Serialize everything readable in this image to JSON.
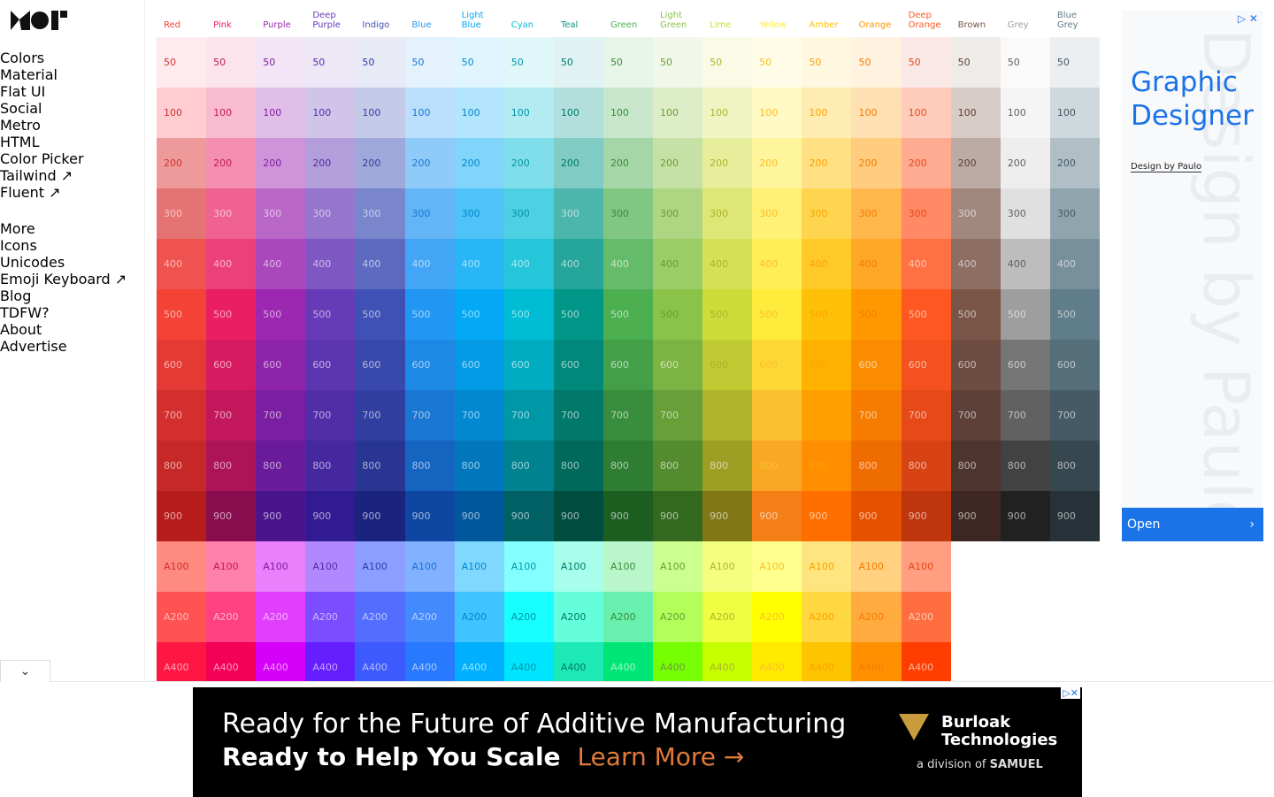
{
  "sidebar": {
    "sections": [
      {
        "title": "Colors",
        "items": [
          "Material",
          "Flat UI",
          "Social",
          "Metro",
          "HTML",
          "Color Picker",
          "Tailwind ↗",
          "Fluent ↗"
        ]
      },
      {
        "title": "More",
        "items": [
          "Icons",
          "Unicodes",
          "Emoji Keyboard ↗",
          "Blog",
          "TDFW?",
          "About",
          "Advertise"
        ]
      }
    ],
    "active": "Material"
  },
  "palette": {
    "shades": [
      "50",
      "100",
      "200",
      "300",
      "400",
      "500",
      "600",
      "700",
      "800",
      "900",
      "A100",
      "A200",
      "A400"
    ],
    "columns": [
      {
        "name": "Red",
        "colors": [
          "#ffebee",
          "#ffcdd2",
          "#ef9a9a",
          "#e57373",
          "#ef5350",
          "#f44336",
          "#e53935",
          "#d32f2f",
          "#c62828",
          "#b71c1c",
          "#ff8a80",
          "#ff5252",
          "#ff1744"
        ]
      },
      {
        "name": "Pink",
        "colors": [
          "#fce4ec",
          "#f8bbd0",
          "#f48fb1",
          "#f06292",
          "#ec407a",
          "#e91e63",
          "#d81b60",
          "#c2185b",
          "#ad1457",
          "#880e4f",
          "#ff80ab",
          "#ff4081",
          "#f50057"
        ]
      },
      {
        "name": "Purple",
        "colors": [
          "#f3e5f5",
          "#e1bee7",
          "#ce93d8",
          "#ba68c8",
          "#ab47bc",
          "#9c27b0",
          "#8e24aa",
          "#7b1fa2",
          "#6a1b9a",
          "#4a148c",
          "#ea80fc",
          "#e040fb",
          "#d500f9"
        ]
      },
      {
        "name": "Deep Purple",
        "colors": [
          "#ede7f6",
          "#d1c4e9",
          "#b39ddb",
          "#9575cd",
          "#7e57c2",
          "#673ab7",
          "#5e35b1",
          "#512da8",
          "#4527a0",
          "#311b92",
          "#b388ff",
          "#7c4dff",
          "#651fff"
        ]
      },
      {
        "name": "Indigo",
        "colors": [
          "#e8eaf6",
          "#c5cae9",
          "#9fa8da",
          "#7986cb",
          "#5c6bc0",
          "#3f51b5",
          "#3949ab",
          "#303f9f",
          "#283593",
          "#1a237e",
          "#8c9eff",
          "#536dfe",
          "#3d5afe"
        ]
      },
      {
        "name": "Blue",
        "colors": [
          "#e3f2fd",
          "#bbdefb",
          "#90caf9",
          "#64b5f6",
          "#42a5f5",
          "#2196f3",
          "#1e88e5",
          "#1976d2",
          "#1565c0",
          "#0d47a1",
          "#82b1ff",
          "#448aff",
          "#2979ff"
        ]
      },
      {
        "name": "Light Blue",
        "colors": [
          "#e1f5fe",
          "#b3e5fc",
          "#81d4fa",
          "#4fc3f7",
          "#29b6f6",
          "#03a9f4",
          "#039be5",
          "#0288d1",
          "#0277bd",
          "#01579b",
          "#80d8ff",
          "#40c4ff",
          "#00b0ff"
        ]
      },
      {
        "name": "Cyan",
        "colors": [
          "#e0f7fa",
          "#b2ebf2",
          "#80deea",
          "#4dd0e1",
          "#26c6da",
          "#00bcd4",
          "#00acc1",
          "#0097a7",
          "#00838f",
          "#006064",
          "#84ffff",
          "#18ffff",
          "#00e5ff"
        ]
      },
      {
        "name": "Teal",
        "colors": [
          "#e0f2f1",
          "#b2dfdb",
          "#80cbc4",
          "#4db6ac",
          "#26a69a",
          "#009688",
          "#00897b",
          "#00796b",
          "#00695c",
          "#004d40",
          "#a7ffeb",
          "#64ffda",
          "#1de9b6"
        ]
      },
      {
        "name": "Green",
        "colors": [
          "#e8f5e9",
          "#c8e6c9",
          "#a5d6a7",
          "#81c784",
          "#66bb6a",
          "#4caf50",
          "#43a047",
          "#388e3c",
          "#2e7d32",
          "#1b5e20",
          "#b9f6ca",
          "#69f0ae",
          "#00e676"
        ]
      },
      {
        "name": "Light Green",
        "colors": [
          "#f1f8e9",
          "#dcedc8",
          "#c5e1a5",
          "#aed581",
          "#9ccc65",
          "#8bc34a",
          "#7cb342",
          "#689f38",
          "#558b2f",
          "#33691e",
          "#ccff90",
          "#b2ff59",
          "#76ff03"
        ]
      },
      {
        "name": "Lime",
        "colors": [
          "#f9fbe7",
          "#f0f4c3",
          "#e6ee9c",
          "#dce775",
          "#d4e157",
          "#cddc39",
          "#c0ca33",
          "#afb42b",
          "#9e9d24",
          "#827717",
          "#f4ff81",
          "#eeff41",
          "#c6ff00"
        ]
      },
      {
        "name": "Yellow",
        "colors": [
          "#fffde7",
          "#fff9c4",
          "#fff59d",
          "#fff176",
          "#ffee58",
          "#ffeb3b",
          "#fdd835",
          "#fbc02d",
          "#f9a825",
          "#f57f17",
          "#ffff8d",
          "#ffff00",
          "#ffea00"
        ]
      },
      {
        "name": "Amber",
        "colors": [
          "#fff8e1",
          "#ffecb3",
          "#ffe082",
          "#ffd54f",
          "#ffca28",
          "#ffc107",
          "#ffb300",
          "#ffa000",
          "#ff8f00",
          "#ff6f00",
          "#ffe57f",
          "#ffd740",
          "#ffc400"
        ]
      },
      {
        "name": "Orange",
        "colors": [
          "#fff3e0",
          "#ffe0b2",
          "#ffcc80",
          "#ffb74d",
          "#ffa726",
          "#ff9800",
          "#fb8c00",
          "#f57c00",
          "#ef6c00",
          "#e65100",
          "#ffd180",
          "#ffab40",
          "#ff9100"
        ]
      },
      {
        "name": "Deep Orange",
        "colors": [
          "#fbe9e7",
          "#ffccbc",
          "#ffab91",
          "#ff8a65",
          "#ff7043",
          "#ff5722",
          "#f4511e",
          "#e64a19",
          "#d84315",
          "#bf360c",
          "#ff9e80",
          "#ff6e40",
          "#ff3d00"
        ]
      },
      {
        "name": "Brown",
        "colors": [
          "#efebe9",
          "#d7ccc8",
          "#bcaaa4",
          "#a1887f",
          "#8d6e63",
          "#795548",
          "#6d4c41",
          "#5d4037",
          "#4e342e",
          "#3e2723"
        ]
      },
      {
        "name": "Grey",
        "colors": [
          "#fafafa",
          "#f5f5f5",
          "#eeeeee",
          "#e0e0e0",
          "#bdbdbd",
          "#9e9e9e",
          "#757575",
          "#616161",
          "#424242",
          "#212121"
        ]
      },
      {
        "name": "Blue Grey",
        "colors": [
          "#eceff1",
          "#cfd8dc",
          "#b0bec5",
          "#90a4ae",
          "#78909c",
          "#607d8b",
          "#546e7a",
          "#455a64",
          "#37474f",
          "#263238"
        ]
      }
    ]
  },
  "side_ad": {
    "headline": "Graphic Designer",
    "byline": "Design by Paulo",
    "button": "Open"
  },
  "bottom_ad": {
    "line1": "Ready for the Future of Additive Manufacturing",
    "line2": "Ready to Help You Scale",
    "cta": "Learn More →",
    "brand": "Burloak Technologies",
    "division": "a division of",
    "parent": "SAMUEL"
  }
}
